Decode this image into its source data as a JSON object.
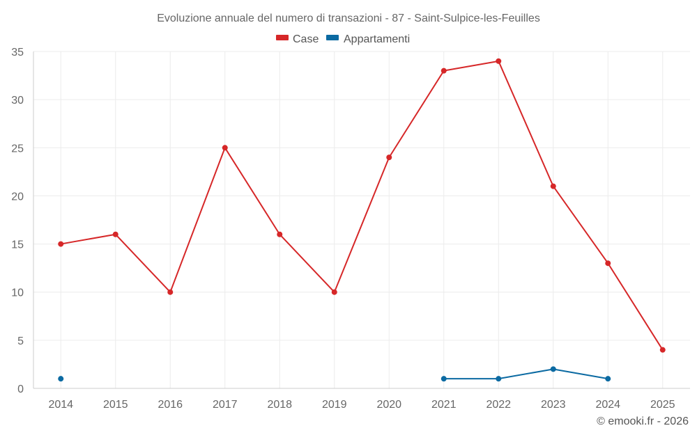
{
  "chart_data": {
    "type": "line",
    "title": "Evoluzione annuale del numero di transazioni - 87 - Saint-Sulpice-les-Feuilles",
    "categories": [
      "2014",
      "2015",
      "2016",
      "2017",
      "2018",
      "2019",
      "2020",
      "2021",
      "2022",
      "2023",
      "2024",
      "2025"
    ],
    "series": [
      {
        "name": "Case",
        "color": "#d62728",
        "values": [
          15,
          16,
          10,
          25,
          16,
          10,
          24,
          33,
          34,
          21,
          13,
          4
        ]
      },
      {
        "name": "Appartamenti",
        "color": "#0b6aa2",
        "values": [
          1,
          null,
          null,
          null,
          null,
          null,
          null,
          1,
          1,
          2,
          1,
          null
        ]
      }
    ],
    "ylim": [
      0,
      35
    ],
    "yticks": [
      0,
      5,
      10,
      15,
      20,
      25,
      30,
      35
    ],
    "grid": true,
    "legend": "top-center",
    "xlabel": "",
    "ylabel": ""
  },
  "credit": "© emooki.fr - 2026"
}
